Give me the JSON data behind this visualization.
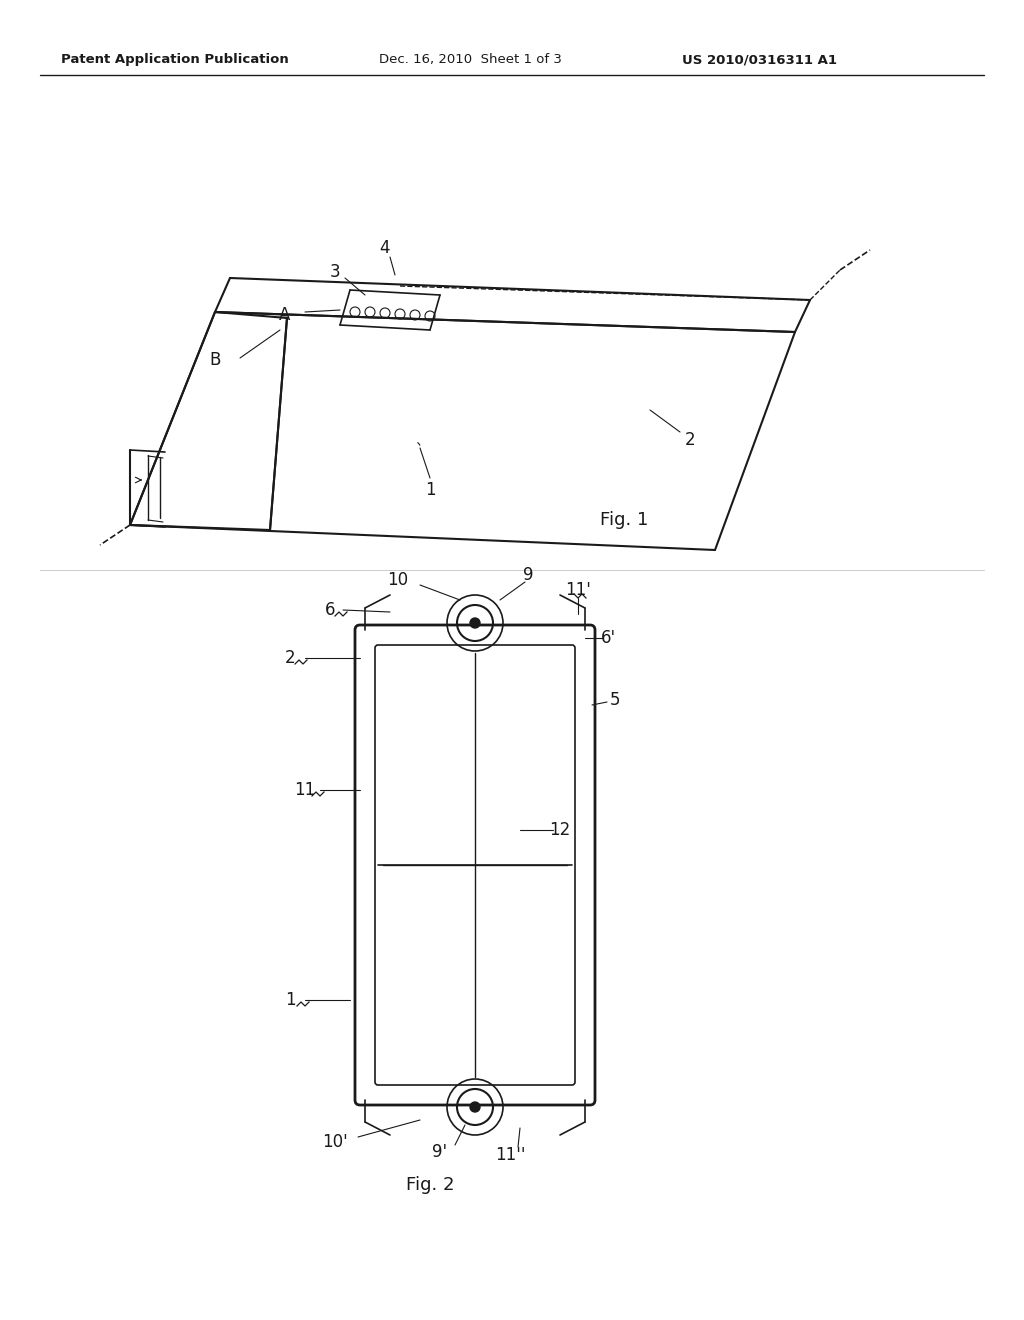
{
  "bg_color": "#ffffff",
  "header_text_left": "Patent Application Publication",
  "header_text_mid": "Dec. 16, 2010  Sheet 1 of 3",
  "header_text_right": "US 2010/0316311 A1",
  "fig1_label": "Fig. 1",
  "fig2_label": "Fig. 2",
  "line_color": "#1a1a1a",
  "text_color": "#1a1a1a"
}
